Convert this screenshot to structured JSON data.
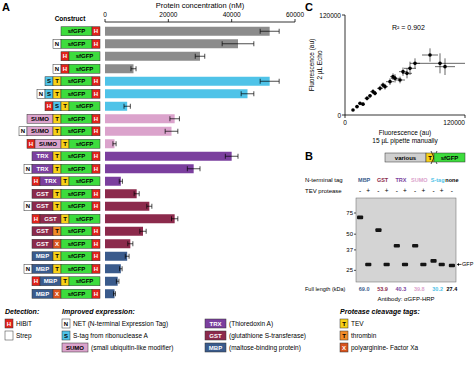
{
  "chart_data": [
    {
      "type": "bar",
      "orientation": "horizontal",
      "xlabel": "Protein concentration (nM)",
      "ylabel": "Construct",
      "categories": [
        null,
        null,
        null,
        null,
        null,
        null,
        null,
        null,
        null,
        null,
        null,
        null,
        null,
        null,
        null,
        null,
        null,
        null,
        null,
        null,
        null,
        null
      ],
      "values": [
        52000,
        42000,
        30000,
        9000,
        52000,
        45000,
        7000,
        22000,
        21000,
        3000,
        40000,
        28000,
        5000,
        10000,
        14000,
        22000,
        12000,
        8000,
        7000,
        5000,
        4000,
        3000
      ],
      "errors": [
        3000,
        5000,
        1500,
        800,
        3000,
        2000,
        1000,
        1500,
        2000,
        500,
        2000,
        2000,
        500,
        800,
        800,
        1000,
        1000,
        800,
        600,
        400,
        400,
        300
      ],
      "colors": [
        "#8c8c8c",
        "#8c8c8c",
        "#8c8c8c",
        "#8c8c8c",
        "#4fc3e8",
        "#4fc3e8",
        "#4fc3e8",
        "#dba3cc",
        "#dba3cc",
        "#dba3cc",
        "#7b3f9e",
        "#7b3f9e",
        "#7b3f9e",
        "#8c2a4c",
        "#8c2a4c",
        "#8c2a4c",
        "#8c2a4c",
        "#8c2a4c",
        "#3a5b8c",
        "#3a5b8c",
        "#3a5b8c",
        "#3a5b8c"
      ],
      "xlim": [
        0,
        60000
      ],
      "xticks": [
        0,
        20000,
        40000,
        60000
      ],
      "grid": false
    },
    {
      "type": "scatter",
      "xlabel": "Fluorescence (au)\n15 µL pipette manually",
      "ylabel": "Fluorescence (au)\n2 µL Echo",
      "annotations": [
        "R² = 0.902"
      ],
      "color": "#000000",
      "marker": "circle",
      "x": [
        8000,
        12000,
        15000,
        18000,
        22000,
        25000,
        28000,
        30000,
        35000,
        38000,
        40000,
        45000,
        48000,
        50000,
        55000,
        58000,
        62000,
        65000,
        70000,
        85000,
        95000,
        100000
      ],
      "values": [
        6000,
        10000,
        14000,
        13000,
        20000,
        23000,
        28000,
        26000,
        32000,
        36000,
        34000,
        40000,
        46000,
        44000,
        42000,
        52000,
        50000,
        56000,
        62000,
        72000,
        62000,
        58000
      ],
      "x_errors": [
        1000,
        2000,
        1500,
        2000,
        2500,
        2000,
        3000,
        2000,
        3000,
        2500,
        3000,
        4000,
        3000,
        4000,
        5000,
        4000,
        5000,
        6000,
        5000,
        8000,
        25000,
        10000
      ],
      "errors": [
        1000,
        1500,
        1500,
        2000,
        2500,
        2000,
        3000,
        2500,
        3000,
        3000,
        3500,
        4000,
        4000,
        5000,
        4000,
        5000,
        6000,
        8000,
        6000,
        8000,
        12000,
        10000
      ],
      "xlim": [
        0,
        120000
      ],
      "ylim": [
        0,
        120000
      ],
      "xticks": [
        0,
        120000
      ],
      "yticks": [
        0,
        120000
      ],
      "grid": false
    }
  ],
  "panel_labels": [
    "A",
    "B",
    "C"
  ],
  "constructs": [
    [
      {
        "label": "sfGFP",
        "color": "#3ddc3d"
      },
      {
        "label": "H",
        "color": "#e2231a"
      }
    ],
    [
      {
        "label": "N",
        "color": "#ffffff"
      },
      {
        "label": "sfGFP",
        "color": "#3ddc3d"
      },
      {
        "label": "H",
        "color": "#e2231a"
      }
    ],
    [
      {
        "label": "H",
        "color": "#e2231a"
      },
      {
        "label": "sfGFP",
        "color": "#3ddc3d"
      }
    ],
    [
      {
        "label": "N",
        "color": "#ffffff"
      },
      {
        "label": "H",
        "color": "#e2231a"
      },
      {
        "label": "sfGFP",
        "color": "#3ddc3d"
      }
    ],
    [
      {
        "label": "S",
        "color": "#4fc3e8"
      },
      {
        "label": "T",
        "color": "#f7d117"
      },
      {
        "label": "sfGFP",
        "color": "#3ddc3d"
      },
      {
        "label": "H",
        "color": "#e2231a"
      }
    ],
    [
      {
        "label": "N",
        "color": "#ffffff"
      },
      {
        "label": "S",
        "color": "#4fc3e8"
      },
      {
        "label": "T",
        "color": "#f7d117"
      },
      {
        "label": "sfGFP",
        "color": "#3ddc3d"
      },
      {
        "label": "H",
        "color": "#e2231a"
      }
    ],
    [
      {
        "label": "H",
        "color": "#e2231a"
      },
      {
        "label": "S",
        "color": "#4fc3e8"
      },
      {
        "label": "T",
        "color": "#f7d117"
      },
      {
        "label": "sfGFP",
        "color": "#3ddc3d"
      }
    ],
    [
      {
        "label": "SUMO",
        "color": "#dba3cc"
      },
      {
        "label": "T",
        "color": "#f7d117"
      },
      {
        "label": "sfGFP",
        "color": "#3ddc3d"
      },
      {
        "label": "H",
        "color": "#e2231a"
      }
    ],
    [
      {
        "label": "N",
        "color": "#ffffff"
      },
      {
        "label": "SUMO",
        "color": "#dba3cc"
      },
      {
        "label": "T",
        "color": "#f7d117"
      },
      {
        "label": "sfGFP",
        "color": "#3ddc3d"
      },
      {
        "label": "H",
        "color": "#e2231a"
      }
    ],
    [
      {
        "label": "H",
        "color": "#e2231a"
      },
      {
        "label": "SUMO",
        "color": "#dba3cc"
      },
      {
        "label": "T",
        "color": "#f7d117"
      },
      {
        "label": "sfGFP",
        "color": "#3ddc3d"
      }
    ],
    [
      {
        "label": "TRX",
        "color": "#7b3f9e"
      },
      {
        "label": "T",
        "color": "#f7d117"
      },
      {
        "label": "sfGFP",
        "color": "#3ddc3d"
      },
      {
        "label": "H",
        "color": "#e2231a"
      }
    ],
    [
      {
        "label": "N",
        "color": "#ffffff"
      },
      {
        "label": "TRX",
        "color": "#7b3f9e"
      },
      {
        "label": "T",
        "color": "#f7d117"
      },
      {
        "label": "sfGFP",
        "color": "#3ddc3d"
      },
      {
        "label": "H",
        "color": "#e2231a"
      }
    ],
    [
      {
        "label": "H",
        "color": "#e2231a"
      },
      {
        "label": "TRX",
        "color": "#7b3f9e"
      },
      {
        "label": "T",
        "color": "#f7d117"
      },
      {
        "label": "sfGFP",
        "color": "#3ddc3d"
      }
    ],
    [
      {
        "label": "GST",
        "color": "#8c2a4c"
      },
      {
        "label": "T",
        "color": "#f7d117"
      },
      {
        "label": "sfGFP",
        "color": "#3ddc3d"
      },
      {
        "label": "H",
        "color": "#e2231a"
      }
    ],
    [
      {
        "label": "N",
        "color": "#ffffff"
      },
      {
        "label": "GST",
        "color": "#8c2a4c"
      },
      {
        "label": "T",
        "color": "#f7d117"
      },
      {
        "label": "sfGFP",
        "color": "#3ddc3d"
      },
      {
        "label": "H",
        "color": "#e2231a"
      }
    ],
    [
      {
        "label": "H",
        "color": "#e2231a"
      },
      {
        "label": "GST",
        "color": "#8c2a4c"
      },
      {
        "label": "T",
        "color": "#f7d117"
      },
      {
        "label": "sfGFP",
        "color": "#3ddc3d"
      }
    ],
    [
      {
        "label": "GST",
        "color": "#8c2a4c"
      },
      {
        "label": "T",
        "color": "#f28c28"
      },
      {
        "label": "sfGFP",
        "color": "#3ddc3d"
      },
      {
        "label": "H",
        "color": "#e2231a"
      }
    ],
    [
      {
        "label": "GST",
        "color": "#8c2a4c"
      },
      {
        "label": "X",
        "color": "#d9541e"
      },
      {
        "label": "sfGFP",
        "color": "#3ddc3d"
      },
      {
        "label": "H",
        "color": "#e2231a"
      }
    ],
    [
      {
        "label": "MBP",
        "color": "#3a5b8c"
      },
      {
        "label": "T",
        "color": "#f7d117"
      },
      {
        "label": "sfGFP",
        "color": "#3ddc3d"
      },
      {
        "label": "H",
        "color": "#e2231a"
      }
    ],
    [
      {
        "label": "N",
        "color": "#ffffff"
      },
      {
        "label": "MBP",
        "color": "#3a5b8c"
      },
      {
        "label": "T",
        "color": "#f7d117"
      },
      {
        "label": "sfGFP",
        "color": "#3ddc3d"
      },
      {
        "label": "H",
        "color": "#e2231a"
      }
    ],
    [
      {
        "label": "H",
        "color": "#e2231a"
      },
      {
        "label": "MBP",
        "color": "#3a5b8c"
      },
      {
        "label": "T",
        "color": "#f7d117"
      },
      {
        "label": "sfGFP",
        "color": "#3ddc3d"
      }
    ],
    [
      {
        "label": "MBP",
        "color": "#3a5b8c"
      },
      {
        "label": "X",
        "color": "#d9541e"
      },
      {
        "label": "sfGFP",
        "color": "#3ddc3d"
      },
      {
        "label": "H",
        "color": "#e2231a"
      }
    ]
  ],
  "blot": {
    "schematic": [
      {
        "label": "various",
        "color": "#cfcfcf"
      },
      {
        "label": "T",
        "color": "#f7d117"
      },
      {
        "label": "sfGFP",
        "color": "#3ddc3d"
      }
    ],
    "row_labels": [
      "N-terminal tag",
      "TEV protease"
    ],
    "groups": [
      {
        "tag": "MBP",
        "color": "#3a5b8c",
        "full_length": "69.0",
        "lanes": [
          {
            "tev": "-",
            "bands_kda": [
              69
            ]
          },
          {
            "tev": "+",
            "bands_kda": [
              28
            ]
          }
        ]
      },
      {
        "tag": "GST",
        "color": "#8c2a4c",
        "full_length": "53.9",
        "lanes": [
          {
            "tev": "-",
            "bands_kda": [
              54
            ]
          },
          {
            "tev": "+",
            "bands_kda": [
              28
            ]
          }
        ]
      },
      {
        "tag": "TRX",
        "color": "#7b3f9e",
        "full_length": "40.3",
        "lanes": [
          {
            "tev": "-",
            "bands_kda": [
              40
            ]
          },
          {
            "tev": "+",
            "bands_kda": [
              28
            ]
          }
        ]
      },
      {
        "tag": "SUMO",
        "color": "#dba3cc",
        "full_length": "39.8",
        "lanes": [
          {
            "tev": "-",
            "bands_kda": [
              40
            ]
          },
          {
            "tev": "+",
            "bands_kda": [
              28
            ]
          }
        ]
      },
      {
        "tag": "S-tag",
        "color": "#4fc3e8",
        "full_length": "30.2",
        "lanes": [
          {
            "tev": "-",
            "bands_kda": [
              30
            ]
          },
          {
            "tev": "+",
            "bands_kda": [
              28
            ]
          }
        ]
      },
      {
        "tag": "none",
        "color": "#000000",
        "full_length": "27.4",
        "lanes": [
          {
            "tev": "-",
            "bands_kda": [
              27.4
            ]
          }
        ]
      }
    ],
    "markers_kda": [
      75,
      50,
      37,
      25
    ],
    "kda_range": [
      20,
      100
    ],
    "band_label": "GFP",
    "gfp_kda": 28,
    "full_length_label": "Full length (kDa)",
    "antibody": "Antibody: αGFP-HRP"
  },
  "key": [
    {
      "title": "Detection:",
      "items": [
        {
          "badge": "H",
          "color": "#e2231a",
          "text": "HiBiT"
        },
        {
          "badge": null,
          "color": "#ffffff",
          "text": "Strep"
        }
      ]
    },
    {
      "title": "Improved expression:",
      "items": [
        {
          "badge": "N",
          "color": "#ffffff",
          "text": "NET (N-terminal Expression Tag)"
        },
        {
          "badge": "S",
          "color": "#4fc3e8",
          "text": "S-tag from ribonuclease A"
        },
        {
          "badge": "SUMO",
          "color": "#dba3cc",
          "text": "(small ubiquitin-like modifier)"
        },
        {
          "badge": "TRX",
          "color": "#7b3f9e",
          "text": "(Thioredoxin A)"
        },
        {
          "badge": "GST",
          "color": "#8c2a4c",
          "text": "(glutathione S-transferase)"
        },
        {
          "badge": "MBP",
          "color": "#3a5b8c",
          "text": "(maltose-binding protein)"
        }
      ]
    },
    {
      "title": "Protease cleavage tags:",
      "items": [
        {
          "badge": "T",
          "color": "#f7d117",
          "text": "TEV"
        },
        {
          "badge": "T",
          "color": "#f28c28",
          "text": "thrombin"
        },
        {
          "badge": "X",
          "color": "#d9541e",
          "text": "polyarginine- Factor Xa"
        }
      ]
    }
  ]
}
